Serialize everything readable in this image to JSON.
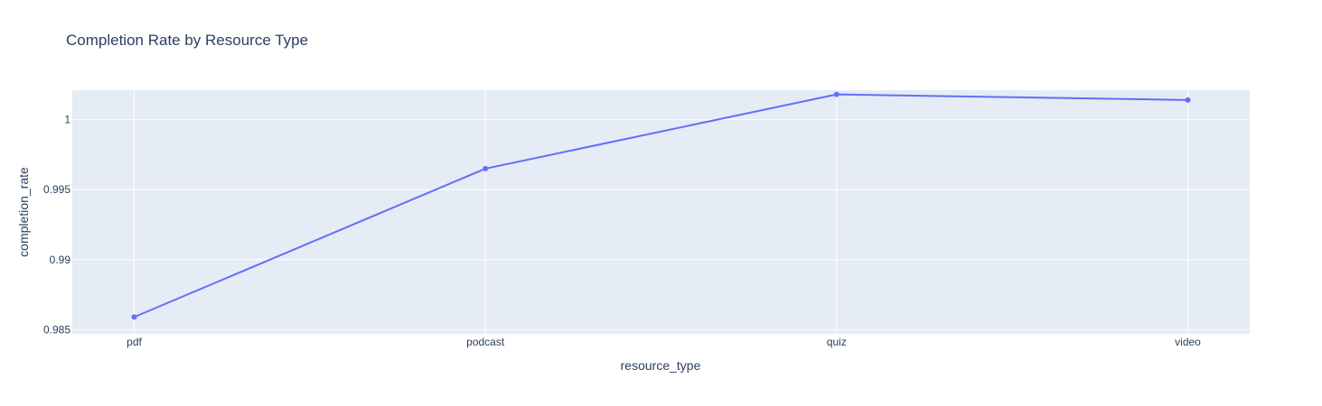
{
  "chart_data": {
    "type": "line",
    "title": "Completion Rate by Resource Type",
    "xlabel": "resource_type",
    "ylabel": "completion_rate",
    "categories": [
      "pdf",
      "podcast",
      "quiz",
      "video"
    ],
    "values": [
      0.9859,
      0.9965,
      1.0018,
      1.0014
    ],
    "ylim": [
      0.9847,
      1.0021
    ],
    "yticks": [
      0.985,
      0.99,
      0.995,
      1
    ],
    "ytick_labels": [
      "0.985",
      "0.99",
      "0.995",
      "1"
    ],
    "grid": true,
    "line_color": "#636efa",
    "plot_bg": "#e5ecf6",
    "grid_color": "#ffffff"
  }
}
